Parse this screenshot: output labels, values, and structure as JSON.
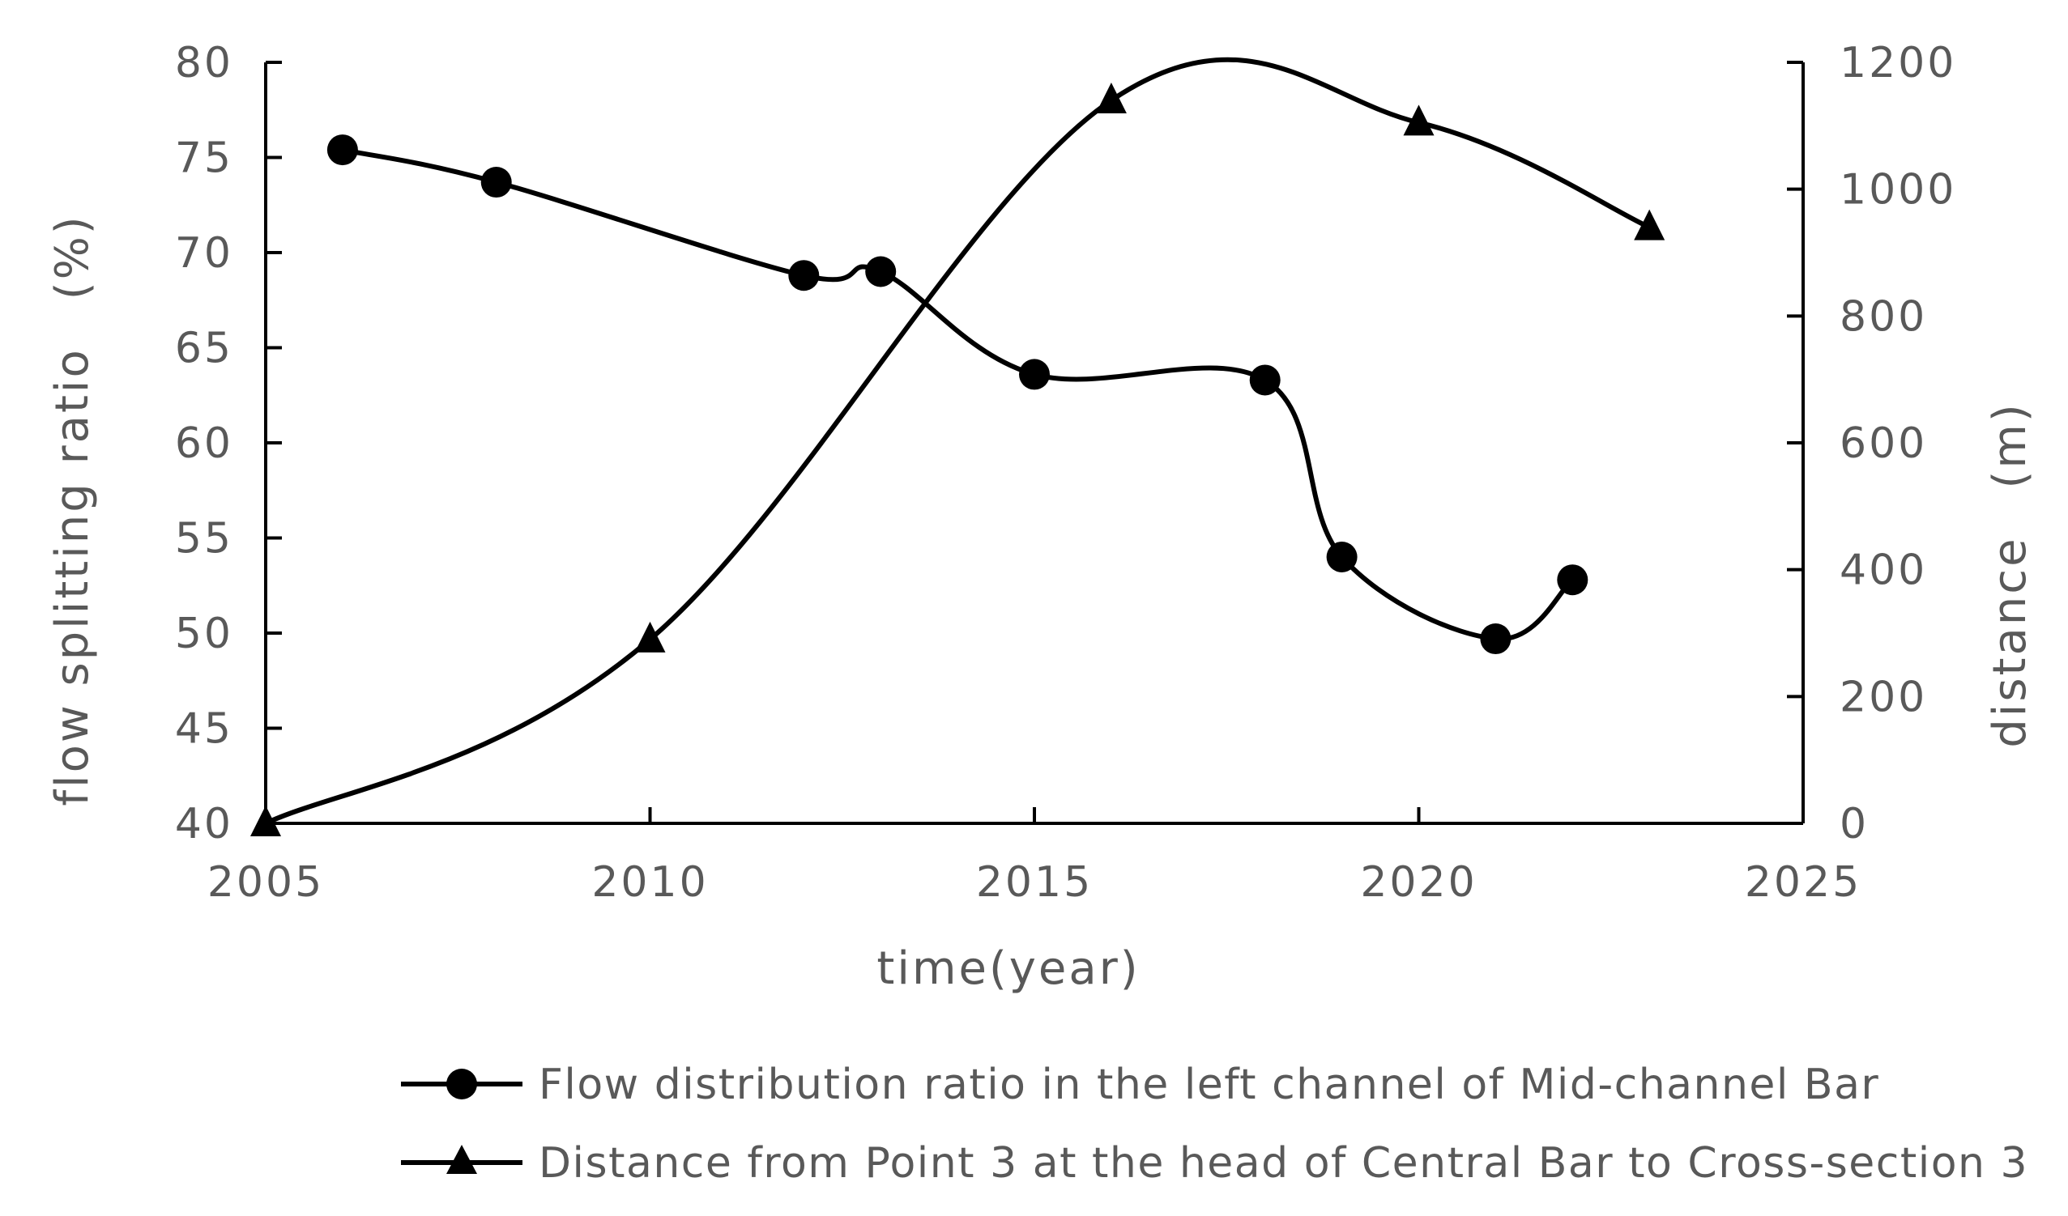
{
  "chart_data": {
    "type": "line",
    "xlabel": "time(year)",
    "ylabel_left": "flow splitting ratio　(%)",
    "ylabel_right": "distance　(m)",
    "xlim": [
      2005,
      2025
    ],
    "xticks": [
      2005,
      2010,
      2015,
      2020,
      2025
    ],
    "ylim_left": [
      40,
      80
    ],
    "yticks_left": [
      40,
      45,
      50,
      55,
      60,
      65,
      70,
      75,
      80
    ],
    "ylim_right": [
      0,
      1200
    ],
    "yticks_right": [
      0,
      200,
      400,
      600,
      800,
      1000,
      1200
    ],
    "grid": false,
    "legend_position": "bottom",
    "series": [
      {
        "name": "Flow distribution ratio in the left channel of Mid-channel Bar",
        "axis": "left",
        "marker": "circle",
        "color": "#000000",
        "x": [
          2006,
          2008,
          2012,
          2013,
          2015,
          2018,
          2019,
          2021,
          2022
        ],
        "y": [
          75.4,
          73.7,
          68.8,
          69.0,
          63.6,
          63.3,
          54.0,
          49.7,
          52.8
        ]
      },
      {
        "name": "Distance from Point 3 at the head of Central Bar to Cross-section 3",
        "axis": "right",
        "marker": "triangle",
        "color": "#000000",
        "x": [
          2005,
          2010,
          2016,
          2020,
          2023
        ],
        "y": [
          0,
          290,
          1140,
          1105,
          940
        ]
      }
    ]
  }
}
